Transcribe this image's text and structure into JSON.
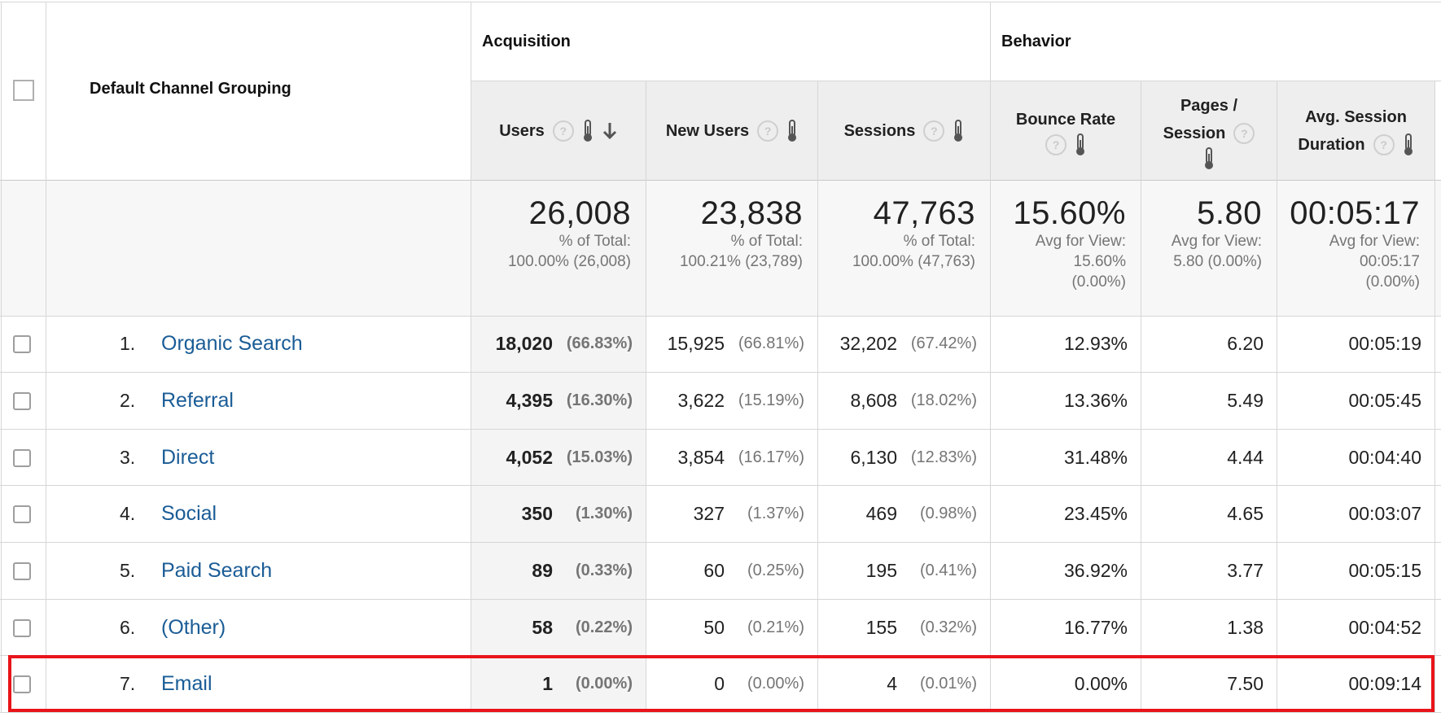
{
  "header": {
    "dimension_label": "Default Channel Grouping",
    "group_acquisition": "Acquisition",
    "group_behavior": "Behavior",
    "metrics": {
      "users": "Users",
      "new_users": "New Users",
      "sessions": "Sessions",
      "bounce_rate": "Bounce Rate",
      "pages_session_l1": "Pages /",
      "pages_session_l2": "Session",
      "avg_duration_l1": "Avg. Session",
      "avg_duration_l2": "Duration"
    },
    "help_glyph": "?"
  },
  "totals": {
    "users": {
      "value": "26,008",
      "sub1": "% of Total:",
      "sub2": "100.00% (26,008)"
    },
    "new_users": {
      "value": "23,838",
      "sub1": "% of Total:",
      "sub2": "100.21% (23,789)"
    },
    "sessions": {
      "value": "47,763",
      "sub1": "% of Total:",
      "sub2": "100.00% (47,763)"
    },
    "bounce_rate": {
      "value": "15.60%",
      "sub1": "Avg for View:",
      "sub2": "15.60%",
      "sub3": "(0.00%)"
    },
    "pages_session": {
      "value": "5.80",
      "sub1": "Avg for View:",
      "sub2": "5.80 (0.00%)"
    },
    "avg_duration": {
      "value": "00:05:17",
      "sub1": "Avg for View:",
      "sub2": "00:05:17",
      "sub3": "(0.00%)"
    }
  },
  "rows": [
    {
      "index": "1.",
      "channel": "Organic Search",
      "users": "18,020",
      "users_pct": "(66.83%)",
      "new_users": "15,925",
      "new_users_pct": "(66.81%)",
      "sessions": "32,202",
      "sessions_pct": "(67.42%)",
      "bounce_rate": "12.93%",
      "pages_session": "6.20",
      "avg_duration": "00:05:19"
    },
    {
      "index": "2.",
      "channel": "Referral",
      "users": "4,395",
      "users_pct": "(16.30%)",
      "new_users": "3,622",
      "new_users_pct": "(15.19%)",
      "sessions": "8,608",
      "sessions_pct": "(18.02%)",
      "bounce_rate": "13.36%",
      "pages_session": "5.49",
      "avg_duration": "00:05:45"
    },
    {
      "index": "3.",
      "channel": "Direct",
      "users": "4,052",
      "users_pct": "(15.03%)",
      "new_users": "3,854",
      "new_users_pct": "(16.17%)",
      "sessions": "6,130",
      "sessions_pct": "(12.83%)",
      "bounce_rate": "31.48%",
      "pages_session": "4.44",
      "avg_duration": "00:04:40"
    },
    {
      "index": "4.",
      "channel": "Social",
      "users": "350",
      "users_pct": "(1.30%)",
      "new_users": "327",
      "new_users_pct": "(1.37%)",
      "sessions": "469",
      "sessions_pct": "(0.98%)",
      "bounce_rate": "23.45%",
      "pages_session": "4.65",
      "avg_duration": "00:03:07"
    },
    {
      "index": "5.",
      "channel": "Paid Search",
      "users": "89",
      "users_pct": "(0.33%)",
      "new_users": "60",
      "new_users_pct": "(0.25%)",
      "sessions": "195",
      "sessions_pct": "(0.41%)",
      "bounce_rate": "36.92%",
      "pages_session": "3.77",
      "avg_duration": "00:05:15"
    },
    {
      "index": "6.",
      "channel": "(Other)",
      "users": "58",
      "users_pct": "(0.22%)",
      "new_users": "50",
      "new_users_pct": "(0.21%)",
      "sessions": "155",
      "sessions_pct": "(0.32%)",
      "bounce_rate": "16.77%",
      "pages_session": "1.38",
      "avg_duration": "00:04:52"
    },
    {
      "index": "7.",
      "channel": "Email",
      "users": "1",
      "users_pct": "(0.00%)",
      "new_users": "0",
      "new_users_pct": "(0.00%)",
      "sessions": "4",
      "sessions_pct": "(0.01%)",
      "bounce_rate": "0.00%",
      "pages_session": "7.50",
      "avg_duration": "00:09:14"
    }
  ],
  "colors": {
    "link": "#1a5c96",
    "highlight": "#e8141a",
    "header_bg": "#eeeeee",
    "total_bg": "#f7f7f7"
  }
}
